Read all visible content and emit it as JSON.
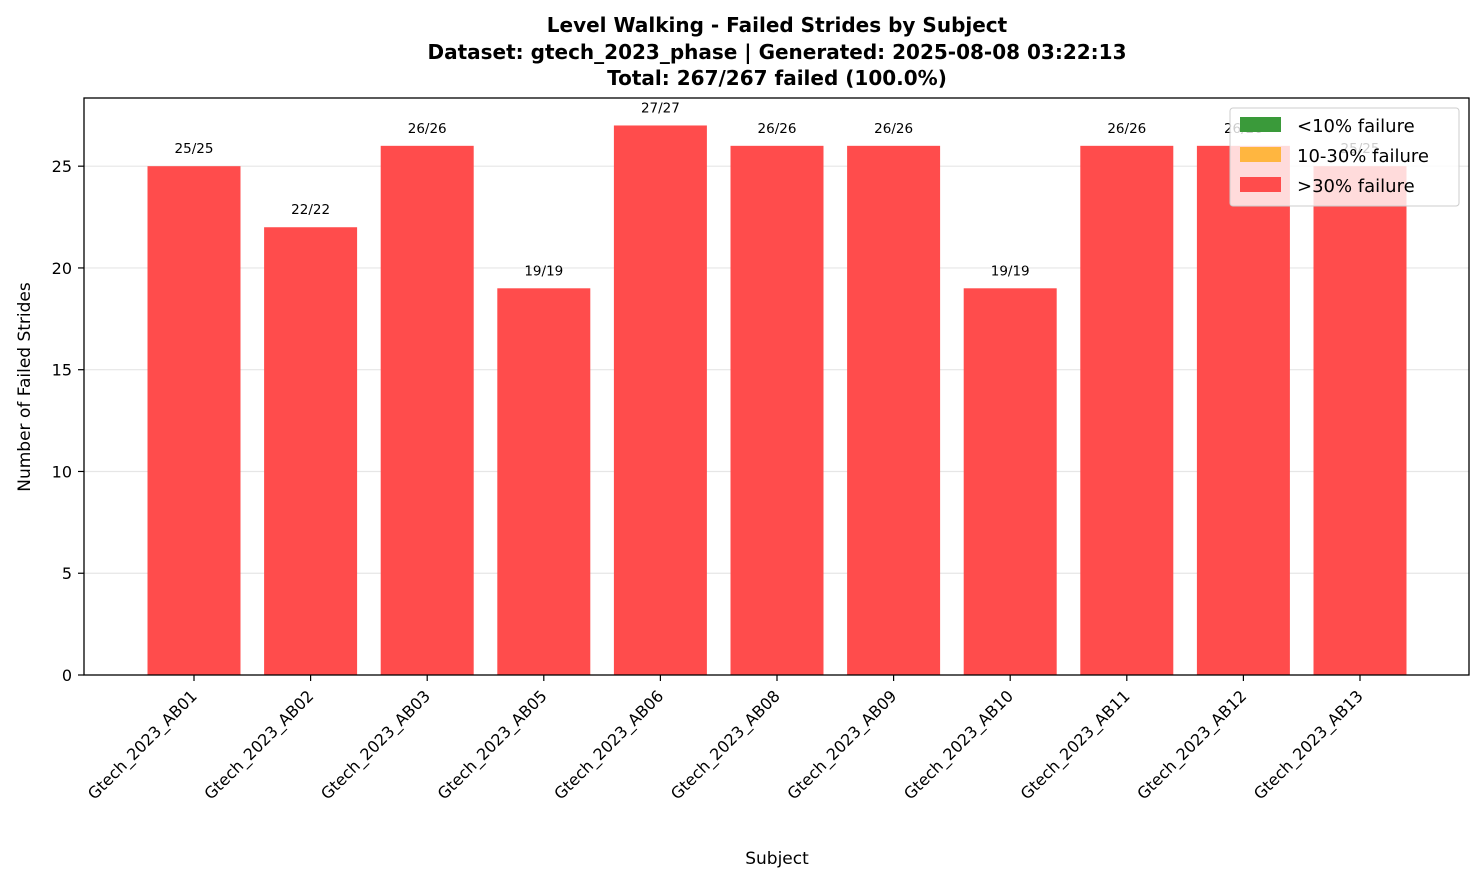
{
  "chart_data": {
    "type": "bar",
    "title_lines": [
      "Level Walking - Failed Strides by Subject",
      "Dataset: gtech_2023_phase | Generated: 2025-08-08 03:22:13",
      "Total: 267/267 failed (100.0%)"
    ],
    "xlabel": "Subject",
    "ylabel": "Number of Failed Strides",
    "ylim": [
      0,
      28.35
    ],
    "yticks": [
      0,
      5,
      10,
      15,
      20,
      25
    ],
    "grid": "y",
    "categories": [
      "Gtech_2023_AB01",
      "Gtech_2023_AB02",
      "Gtech_2023_AB03",
      "Gtech_2023_AB05",
      "Gtech_2023_AB06",
      "Gtech_2023_AB08",
      "Gtech_2023_AB09",
      "Gtech_2023_AB10",
      "Gtech_2023_AB11",
      "Gtech_2023_AB12",
      "Gtech_2023_AB13"
    ],
    "values": [
      25,
      22,
      26,
      19,
      27,
      26,
      26,
      19,
      26,
      26,
      25
    ],
    "bar_labels": [
      "25/25",
      "22/22",
      "26/26",
      "19/19",
      "27/27",
      "26/26",
      "26/26",
      "19/19",
      "26/26",
      "26/26",
      "25/25"
    ],
    "bar_color": "#ff4c4c",
    "legend": {
      "placement": "top-right",
      "items": [
        {
          "label": "<10% failure",
          "color": "#3a9a3a"
        },
        {
          "label": "10-30% failure",
          "color": "#ffb640"
        },
        {
          "label": ">30% failure",
          "color": "#ff4c4c"
        }
      ]
    }
  }
}
